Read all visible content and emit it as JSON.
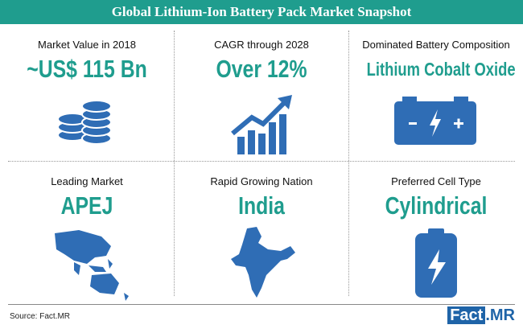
{
  "header": {
    "title": "Global Lithium-Ion Battery Pack Market Snapshot"
  },
  "cells": [
    {
      "label": "Market Value in 2018",
      "value": "~US$ 115 Bn"
    },
    {
      "label": "CAGR through 2028",
      "value": "Over 12%"
    },
    {
      "label": "Dominated Battery Composition",
      "value": "Lithium Cobalt Oxide"
    },
    {
      "label": "Leading Market",
      "value": "APEJ"
    },
    {
      "label": "Rapid Growing Nation",
      "value": "India"
    },
    {
      "label": "Preferred Cell Type",
      "value": "Cylindrical"
    }
  ],
  "footer": {
    "source": "Source: Fact.MR",
    "logo": {
      "brand": "Fact",
      "suffix": ".MR"
    }
  }
}
